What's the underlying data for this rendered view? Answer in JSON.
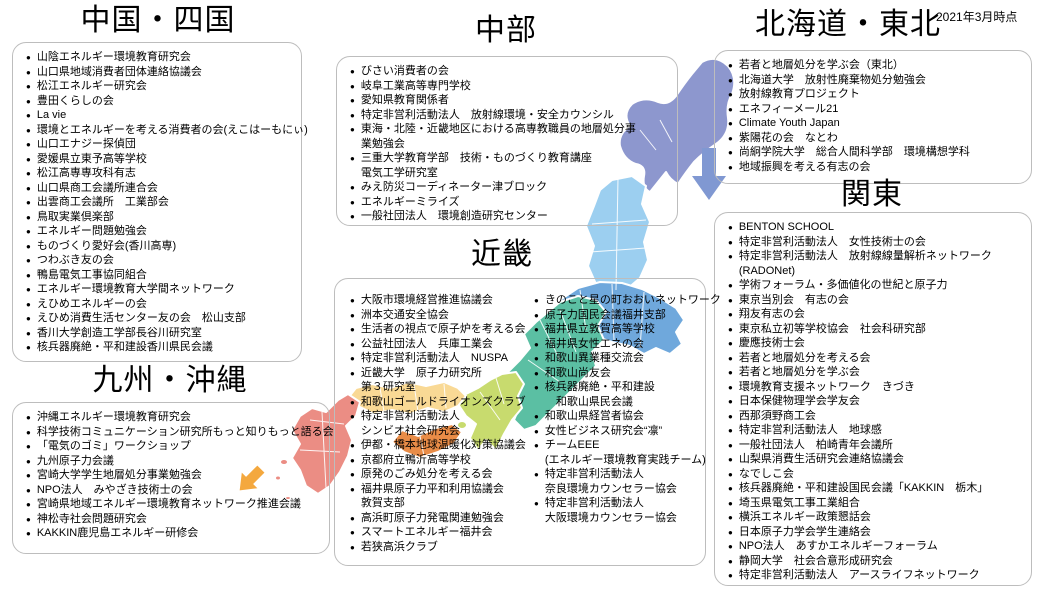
{
  "meta": {
    "date_note": "2021年3月時点"
  },
  "regions": [
    {
      "id": "chugoku-shikoku",
      "title": "中国・四国",
      "items": [
        "山陰エネルギー環境教育研究会",
        "山口県地域消費者団体連絡協議会",
        "松江エネルギー研究会",
        "豊田くらしの会",
        "La vie",
        "環境とエネルギーを考える消費者の会(えこはーもにぃ)",
        "山口エナジー探偵団",
        "愛媛県立東予高等学校",
        "松江高専専攻科有志",
        "山口県商工会議所連合会",
        "出雲商工会議所　工業部会",
        "鳥取実業倶楽部",
        "エネルギー問題勉強会",
        "ものづくり愛好会(香川高専)",
        "つわぶき友の会",
        "鴨島電気工事協同組合",
        "エネルギー環境教育大学間ネットワーク",
        "えひめエネルギーの会",
        "えひめ消費生活センター友の会　松山支部",
        "香川大学創造工学部長谷川研究室",
        "核兵器廃絶・平和建設香川県民会議"
      ]
    },
    {
      "id": "chubu",
      "title": "中部",
      "items": [
        "びさい消費者の会",
        "岐阜工業高等専門学校",
        "愛知県教育関係者",
        "特定非営利活動法人　放射線環境・安全カウンシル",
        "東海・北陸・近畿地区における高専教職員の地層処分事\n業勉強会",
        "三重大学教育学部　技術・ものづくり教育講座\n電気工学研究室",
        "みえ防災コーディネーター津ブロック",
        "エネルギーミライズ",
        "一般社団法人　環境創造研究センター"
      ]
    },
    {
      "id": "hokkaido-tohoku",
      "title": "北海道・東北",
      "items": [
        "若者と地層処分を学ぶ会（東北）",
        "北海道大学　放射性廃棄物処分勉強会",
        "放射線教育プロジェクト",
        "エネフィーメール21",
        "Climate Youth Japan",
        "紫陽花の会　なとわ",
        "尚絅学院大学　総合人間科学部　環境構想学科",
        "地域振興を考える有志の会"
      ]
    },
    {
      "id": "kanto",
      "title": "関東",
      "items": [
        "BENTON SCHOOL",
        "特定非営利活動法人　女性技術士の会",
        "特定非営利活動法人　放射線線量解析ネットワーク\n(RADONet)",
        "学術フォーラム・多価値化の世紀と原子力",
        "東京当別会　有志の会",
        "翔友有志の会",
        "東京私立初等学校協会　社会科研究部",
        "慶應技術士会",
        "若者と地層処分を考える会",
        "若者と地層処分を学ぶ会",
        "環境教育支援ネットワーク　きづき",
        "日本保健物理学会学友会",
        "西那須野商工会",
        "特定非営利活動法人　地球感",
        "一般社団法人　柏崎青年会議所",
        "山梨県消費生活研究会連絡協議会",
        "なでしこ会",
        "核兵器廃絶・平和建設国民会議「KAKKIN　栃木」",
        "埼玉県電気工事工業組合",
        "横浜エネルギー政策懇話会",
        "日本原子力学会学生連絡会",
        "NPO法人　あすかエネルギーフォーラム",
        "静岡大学　社会合意形成研究会",
        "特定非営利活動法人　アースライフネットワーク"
      ]
    },
    {
      "id": "kinki",
      "title": "近畿",
      "items_left": [
        "大阪市環境経営推進協議会",
        "洲本交通安全協会",
        "生活者の視点で原子炉を考える会",
        "公益社団法人　兵庫工業会",
        "特定非営利活動法人　NUSPA",
        "近畿大学　原子力研究所\n第３研究室",
        "和歌山ゴールドライオンズクラブ",
        "特定非営利活動法人\nシンビオ社会研究会",
        "伊都・橋本地球温暖化対策協議会",
        "京都府立鴨沂高等学校",
        "原発のごみ処分を考える会",
        "福井県原子力平和利用協議会\n敦賀支部",
        "高浜町原子力発電関連勉強会",
        "スマートエネルギー福井会",
        "若狭高浜クラブ"
      ],
      "items_right": [
        "きのこと星の町おおいネットワーク",
        "原子力国民会議福井支部",
        "福井県立敦賀高等学校",
        "福井県女性エネの会",
        "和歌山異業種交流会",
        "和歌山尚友会",
        "核兵器廃絶・平和建設\n　和歌山県民会議",
        "和歌山県経営者協会",
        "女性ビジネス研究会“凛”",
        "チームEEE\n(エネルギー環境教育実践チーム)",
        "特定非営利活動法人\n奈良環境カウンセラー協会",
        "特定非営利活動法人\n大阪環境カウンセラー協会"
      ]
    },
    {
      "id": "kyushu-okinawa",
      "title": "九州・沖縄",
      "items": [
        "沖縄エネルギー環境教育研究会",
        "科学技術コミュニケーション研究所もっと知りもっと語る会",
        "「電気のゴミ」ワークショップ",
        "九州原子力会議",
        "宮崎大学学生地層処分事業勉強会",
        "NPO法人　みやざき技術士の会",
        "宮崎県地域エネルギー環境教育ネットワーク推進会議",
        "神松寺社会問題研究会",
        "KAKKIN鹿児島エネルギー研修会"
      ]
    }
  ],
  "map_colors": {
    "hokkaido": "#8D97CE",
    "tohoku": "#9CCFF0",
    "kanto": "#6FA8DC",
    "chubu": "#5BBFA3",
    "kinki": "#C8DB6E",
    "chugoku": "#F9D995",
    "shikoku": "#E98C47",
    "kyushu": "#EB8D84",
    "arrow_blue": "#8098D2",
    "arrow_orange": "#F4A83E"
  }
}
